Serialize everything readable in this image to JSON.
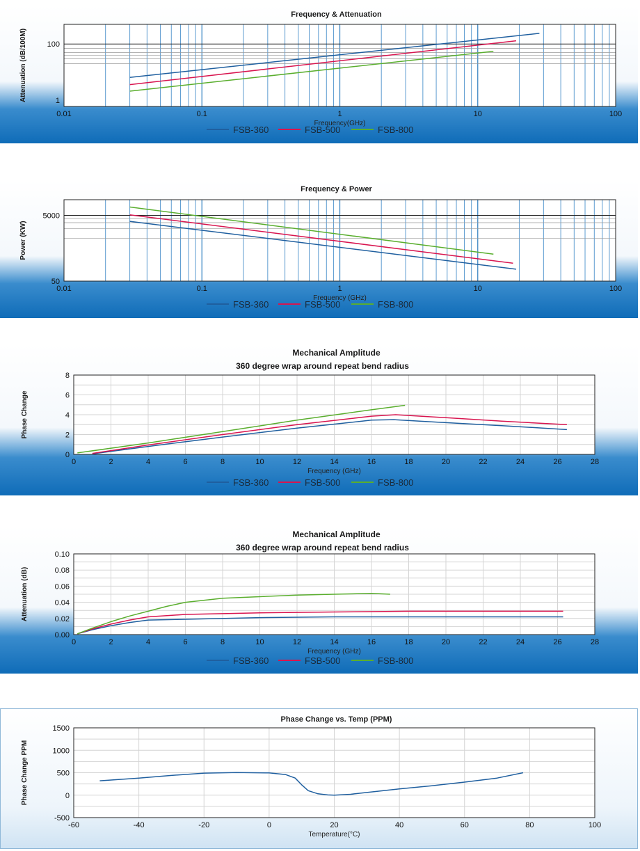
{
  "chart_data": [
    {
      "type": "line",
      "title": "Frequency & Attenuation",
      "subtitle": "",
      "xlabel": "Frequency(GHz)",
      "ylabel": "Attenuation   (dB/100M)",
      "xscale": "log",
      "yscale": "log",
      "xlim": [
        0.01,
        100
      ],
      "ylim": [
        0.6,
        500
      ],
      "xticks": [
        "0.01",
        "0.1",
        "1",
        "10",
        "100"
      ],
      "xtick_values": [
        0.01,
        0.1,
        1,
        10,
        100
      ],
      "yticks": [
        "1",
        "100"
      ],
      "ytick_values": [
        1,
        100
      ],
      "grid": "vertical log lines, horizontal lines near 100",
      "legend_position": "bottom",
      "series": [
        {
          "name": "FSB-360",
          "color": "#1f5f9f",
          "x": [
            0.03,
            28
          ],
          "y": [
            6.5,
            240
          ]
        },
        {
          "name": "FSB-500",
          "color": "#d8154f",
          "x": [
            0.03,
            19
          ],
          "y": [
            3.6,
            130
          ]
        },
        {
          "name": "FSB-800",
          "color": "#5aae2e",
          "x": [
            0.03,
            13
          ],
          "y": [
            2.1,
            55
          ]
        }
      ]
    },
    {
      "type": "line",
      "title": "Frequency & Power",
      "subtitle": "",
      "xlabel": "Frequency (GHz)",
      "ylabel": "Power (KW)",
      "xscale": "log",
      "yscale": "log",
      "xlim": [
        0.01,
        100
      ],
      "ylim": [
        50,
        15000
      ],
      "xticks": [
        "0.01",
        "0.1",
        "1",
        "10",
        "100"
      ],
      "xtick_values": [
        0.01,
        0.1,
        1,
        10,
        100
      ],
      "yticks": [
        "5000",
        "50"
      ],
      "ytick_values": [
        5000,
        50
      ],
      "grid": "vertical log lines, horizontal lines",
      "legend_position": "bottom",
      "series": [
        {
          "name": "FSB-360",
          "color": "#1f5f9f",
          "x": [
            0.03,
            19
          ],
          "y": [
            3300,
            115
          ]
        },
        {
          "name": "FSB-500",
          "color": "#d8154f",
          "x": [
            0.03,
            18
          ],
          "y": [
            5200,
            175
          ]
        },
        {
          "name": "FSB-800",
          "color": "#5aae2e",
          "x": [
            0.03,
            13
          ],
          "y": [
            9000,
            330
          ]
        }
      ]
    },
    {
      "type": "line",
      "title": "Mechanical  Amplitude",
      "subtitle": "360 degree wrap around repeat bend radius",
      "xlabel": "Frequency (GHz)",
      "ylabel": "Phase Change",
      "xscale": "linear",
      "yscale": "linear",
      "xlim": [
        0,
        28
      ],
      "ylim": [
        0,
        8
      ],
      "xticks": [
        "0",
        "2",
        "4",
        "6",
        "8",
        "10",
        "12",
        "14",
        "16",
        "18",
        "20",
        "22",
        "24",
        "26",
        "28"
      ],
      "xtick_values": [
        0,
        2,
        4,
        6,
        8,
        10,
        12,
        14,
        16,
        18,
        20,
        22,
        24,
        26,
        28
      ],
      "yticks": [
        "0",
        "2",
        "4",
        "6",
        "8"
      ],
      "ytick_values": [
        0,
        2,
        4,
        6,
        8
      ],
      "grid": "on",
      "legend_position": "bottom",
      "series": [
        {
          "name": "FSB-360",
          "color": "#1f5f9f",
          "x": [
            1,
            4,
            8,
            12,
            16,
            17.2,
            20,
            23,
            26.5
          ],
          "y": [
            0.05,
            0.8,
            1.75,
            2.65,
            3.45,
            3.5,
            3.2,
            2.9,
            2.5
          ]
        },
        {
          "name": "FSB-500",
          "color": "#d8154f",
          "x": [
            1,
            4,
            8,
            12,
            16,
            17.3,
            20,
            23,
            26.5
          ],
          "y": [
            0.1,
            0.95,
            2.0,
            3.0,
            3.85,
            4.0,
            3.7,
            3.35,
            3.0
          ]
        },
        {
          "name": "FSB-800",
          "color": "#5aae2e",
          "x": [
            0.2,
            4,
            8,
            12,
            16,
            17.8
          ],
          "y": [
            0.15,
            1.15,
            2.3,
            3.45,
            4.5,
            4.95
          ]
        }
      ]
    },
    {
      "type": "line",
      "title": "Mechanical  Amplitude",
      "subtitle": "360 degree wrap around repeat bend radius",
      "xlabel": "Frequency (GHz)",
      "ylabel": "Attenuation (dB)",
      "xscale": "linear",
      "yscale": "linear",
      "xlim": [
        0,
        28
      ],
      "ylim": [
        0,
        0.1
      ],
      "xticks": [
        "0",
        "2",
        "4",
        "6",
        "8",
        "10",
        "12",
        "14",
        "16",
        "18",
        "20",
        "22",
        "24",
        "26",
        "28"
      ],
      "xtick_values": [
        0,
        2,
        4,
        6,
        8,
        10,
        12,
        14,
        16,
        18,
        20,
        22,
        24,
        26,
        28
      ],
      "yticks": [
        "0.00",
        "0.02",
        "0.04",
        "0.06",
        "0.08",
        "0.10"
      ],
      "ytick_values": [
        0,
        0.02,
        0.04,
        0.06,
        0.08,
        0.1
      ],
      "grid": "on",
      "legend_position": "bottom",
      "series": [
        {
          "name": "FSB-360",
          "color": "#1f5f9f",
          "x": [
            0.2,
            1,
            2,
            3,
            4,
            6,
            10,
            14,
            18,
            22,
            26.3
          ],
          "y": [
            0.001,
            0.006,
            0.011,
            0.015,
            0.018,
            0.019,
            0.021,
            0.022,
            0.022,
            0.022,
            0.022
          ]
        },
        {
          "name": "FSB-500",
          "color": "#d8154f",
          "x": [
            0.2,
            1,
            2,
            3,
            4,
            6,
            10,
            14,
            18,
            22,
            26.3
          ],
          "y": [
            0.001,
            0.007,
            0.013,
            0.018,
            0.022,
            0.025,
            0.027,
            0.028,
            0.029,
            0.029,
            0.029
          ]
        },
        {
          "name": "FSB-800",
          "color": "#5aae2e",
          "x": [
            0.2,
            1,
            2,
            3,
            4,
            5,
            6,
            8,
            10,
            12,
            14,
            16,
            17
          ],
          "y": [
            0.001,
            0.008,
            0.016,
            0.023,
            0.029,
            0.035,
            0.04,
            0.045,
            0.047,
            0.049,
            0.05,
            0.051,
            0.05
          ]
        }
      ]
    },
    {
      "type": "line",
      "title": "Phase Change vs. Temp (PPM)",
      "subtitle": "",
      "xlabel": "Temperature(°C)",
      "ylabel": "Phase Change PPM",
      "xscale": "linear",
      "yscale": "linear",
      "xlim": [
        -60,
        100
      ],
      "ylim": [
        -500,
        1500
      ],
      "xticks": [
        "-60",
        "-40",
        "-20",
        "0",
        "20",
        "40",
        "60",
        "80",
        "100"
      ],
      "xtick_values": [
        -60,
        -40,
        -20,
        0,
        20,
        40,
        60,
        80,
        100
      ],
      "yticks": [
        "-500",
        "0",
        "500",
        "1000",
        "1500"
      ],
      "ytick_values": [
        -500,
        0,
        500,
        1000,
        1500
      ],
      "grid": "on",
      "legend_position": "none",
      "series": [
        {
          "color": "#1f5f9f",
          "x": [
            -52,
            -40,
            -30,
            -20,
            -10,
            0,
            5,
            8,
            10,
            12,
            15,
            18,
            20,
            25,
            30,
            40,
            50,
            60,
            70,
            78
          ],
          "y": [
            320,
            380,
            440,
            490,
            505,
            495,
            460,
            380,
            230,
            100,
            30,
            5,
            0,
            20,
            60,
            140,
            210,
            290,
            380,
            500
          ]
        }
      ]
    }
  ]
}
